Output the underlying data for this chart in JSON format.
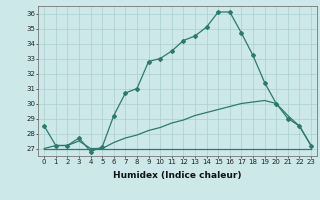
{
  "line1_x": [
    0,
    1,
    2,
    3,
    4,
    5,
    6,
    7,
    8,
    9,
    10,
    11,
    12,
    13,
    14,
    15,
    16,
    17,
    18,
    19,
    20,
    21,
    22,
    23
  ],
  "line1_y": [
    28.5,
    27.2,
    27.2,
    27.7,
    26.8,
    27.1,
    29.2,
    30.7,
    31.0,
    32.8,
    33.0,
    33.5,
    34.2,
    34.5,
    35.1,
    36.1,
    36.1,
    34.7,
    33.2,
    31.4,
    30.0,
    29.0,
    28.5,
    27.2
  ],
  "line2_x": [
    0,
    5,
    21,
    23
  ],
  "line2_y": [
    27.0,
    27.0,
    27.0,
    27.0
  ],
  "line3_x": [
    0,
    1,
    2,
    3,
    4,
    5,
    6,
    7,
    8,
    9,
    10,
    11,
    12,
    13,
    14,
    15,
    16,
    17,
    18,
    19,
    20,
    21,
    22,
    23
  ],
  "line3_y": [
    27.0,
    27.2,
    27.2,
    27.5,
    27.0,
    27.0,
    27.4,
    27.7,
    27.9,
    28.2,
    28.4,
    28.7,
    28.9,
    29.2,
    29.4,
    29.6,
    29.8,
    30.0,
    30.1,
    30.2,
    30.0,
    29.2,
    28.5,
    27.2
  ],
  "line_color": "#2d7a6a",
  "bg_color": "#cce8e8",
  "grid_color": "#aacfcf",
  "xlabel": "Humidex (Indice chaleur)",
  "ylim": [
    26.5,
    36.5
  ],
  "xlim": [
    -0.5,
    23.5
  ],
  "yticks": [
    27,
    28,
    29,
    30,
    31,
    32,
    33,
    34,
    35,
    36
  ],
  "xticks": [
    0,
    1,
    2,
    3,
    4,
    5,
    6,
    7,
    8,
    9,
    10,
    11,
    12,
    13,
    14,
    15,
    16,
    17,
    18,
    19,
    20,
    21,
    22,
    23
  ],
  "marker": "D",
  "markersize": 2.0,
  "linewidth": 0.9,
  "tick_fontsize": 5.0,
  "xlabel_fontsize": 6.5
}
